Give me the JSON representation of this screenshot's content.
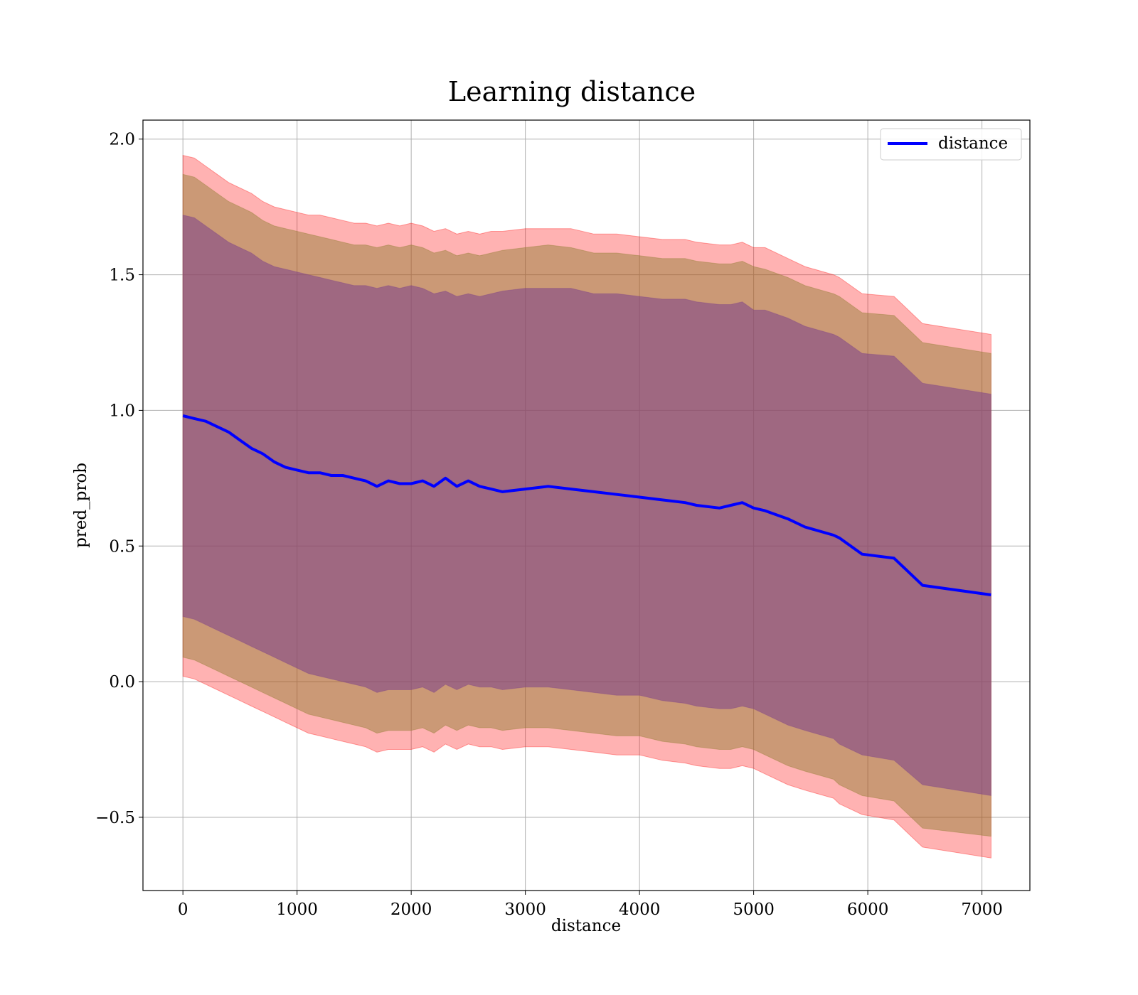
{
  "chart_data": {
    "type": "line",
    "title": "Learning distance",
    "xlabel": "distance",
    "ylabel": "pred_prob",
    "xlim": [
      -350,
      7420
    ],
    "ylim": [
      -0.77,
      2.07
    ],
    "xticks": [
      0,
      1000,
      2000,
      3000,
      4000,
      5000,
      6000,
      7000
    ],
    "yticks": [
      -0.5,
      0.0,
      0.5,
      1.0,
      1.5,
      2.0
    ],
    "xtick_labels": [
      "0",
      "1000",
      "2000",
      "3000",
      "4000",
      "5000",
      "6000",
      "7000"
    ],
    "ytick_labels": [
      "−0.5",
      "0.0",
      "0.5",
      "1.0",
      "1.5",
      "2.0"
    ],
    "grid": true,
    "legend": {
      "placement": "top-right",
      "entries": [
        "distance"
      ]
    },
    "colors": {
      "line": "#0000ff",
      "band_outer": "#ff0000",
      "band_mid": "#8c7a2c",
      "band_inner": "#7b3f8a",
      "grid": "#b0b0b0"
    },
    "series": [
      {
        "name": "distance",
        "x": [
          0,
          100,
          200,
          300,
          400,
          500,
          600,
          700,
          800,
          900,
          1000,
          1100,
          1200,
          1300,
          1400,
          1500,
          1600,
          1700,
          1800,
          1900,
          2000,
          2100,
          2200,
          2300,
          2400,
          2500,
          2600,
          2700,
          2800,
          3000,
          3200,
          3400,
          3600,
          3800,
          4000,
          4200,
          4400,
          4500,
          4700,
          4800,
          4900,
          5000,
          5100,
          5300,
          5450,
          5700,
          5750,
          5950,
          6230,
          6480,
          7080
        ],
        "y": [
          0.98,
          0.97,
          0.96,
          0.94,
          0.92,
          0.89,
          0.86,
          0.84,
          0.81,
          0.79,
          0.78,
          0.77,
          0.77,
          0.76,
          0.76,
          0.75,
          0.74,
          0.72,
          0.74,
          0.73,
          0.73,
          0.74,
          0.72,
          0.75,
          0.72,
          0.74,
          0.72,
          0.71,
          0.7,
          0.71,
          0.72,
          0.71,
          0.7,
          0.69,
          0.68,
          0.67,
          0.66,
          0.65,
          0.64,
          0.65,
          0.66,
          0.64,
          0.63,
          0.6,
          0.57,
          0.54,
          0.53,
          0.47,
          0.455,
          0.355,
          0.32
        ]
      }
    ],
    "bands": [
      {
        "upper": [
          1.94,
          1.93,
          1.9,
          1.87,
          1.84,
          1.82,
          1.8,
          1.77,
          1.75,
          1.74,
          1.73,
          1.72,
          1.72,
          1.71,
          1.7,
          1.69,
          1.69,
          1.68,
          1.69,
          1.68,
          1.69,
          1.68,
          1.66,
          1.67,
          1.65,
          1.66,
          1.65,
          1.66,
          1.66,
          1.67,
          1.67,
          1.67,
          1.65,
          1.65,
          1.64,
          1.63,
          1.63,
          1.62,
          1.61,
          1.61,
          1.62,
          1.6,
          1.6,
          1.56,
          1.53,
          1.5,
          1.49,
          1.43,
          1.42,
          1.32,
          1.28
        ],
        "lower": [
          0.02,
          0.01,
          -0.01,
          -0.03,
          -0.05,
          -0.07,
          -0.09,
          -0.11,
          -0.13,
          -0.15,
          -0.17,
          -0.19,
          -0.2,
          -0.21,
          -0.22,
          -0.23,
          -0.24,
          -0.26,
          -0.25,
          -0.25,
          -0.25,
          -0.24,
          -0.26,
          -0.23,
          -0.25,
          -0.23,
          -0.24,
          -0.24,
          -0.25,
          -0.24,
          -0.24,
          -0.25,
          -0.26,
          -0.27,
          -0.27,
          -0.29,
          -0.3,
          -0.31,
          -0.32,
          -0.32,
          -0.31,
          -0.32,
          -0.34,
          -0.38,
          -0.4,
          -0.43,
          -0.45,
          -0.49,
          -0.51,
          -0.61,
          -0.65
        ]
      },
      {
        "upper": [
          1.87,
          1.86,
          1.83,
          1.8,
          1.77,
          1.75,
          1.73,
          1.7,
          1.68,
          1.67,
          1.66,
          1.65,
          1.64,
          1.63,
          1.62,
          1.61,
          1.61,
          1.6,
          1.61,
          1.6,
          1.61,
          1.6,
          1.58,
          1.59,
          1.57,
          1.58,
          1.57,
          1.58,
          1.59,
          1.6,
          1.61,
          1.6,
          1.58,
          1.58,
          1.57,
          1.56,
          1.56,
          1.55,
          1.54,
          1.54,
          1.55,
          1.53,
          1.52,
          1.49,
          1.46,
          1.43,
          1.42,
          1.36,
          1.35,
          1.25,
          1.21
        ],
        "lower": [
          0.09,
          0.08,
          0.06,
          0.04,
          0.02,
          -0.0,
          -0.02,
          -0.04,
          -0.06,
          -0.08,
          -0.1,
          -0.12,
          -0.13,
          -0.14,
          -0.15,
          -0.16,
          -0.17,
          -0.19,
          -0.18,
          -0.18,
          -0.18,
          -0.17,
          -0.19,
          -0.16,
          -0.18,
          -0.16,
          -0.17,
          -0.17,
          -0.18,
          -0.17,
          -0.17,
          -0.18,
          -0.19,
          -0.2,
          -0.2,
          -0.22,
          -0.23,
          -0.24,
          -0.25,
          -0.25,
          -0.24,
          -0.25,
          -0.27,
          -0.31,
          -0.33,
          -0.36,
          -0.38,
          -0.42,
          -0.44,
          -0.54,
          -0.57
        ]
      },
      {
        "upper": [
          1.72,
          1.71,
          1.68,
          1.65,
          1.62,
          1.6,
          1.58,
          1.55,
          1.53,
          1.52,
          1.51,
          1.5,
          1.49,
          1.48,
          1.47,
          1.46,
          1.46,
          1.45,
          1.46,
          1.45,
          1.46,
          1.45,
          1.43,
          1.44,
          1.42,
          1.43,
          1.42,
          1.43,
          1.44,
          1.45,
          1.45,
          1.45,
          1.43,
          1.43,
          1.42,
          1.41,
          1.41,
          1.4,
          1.39,
          1.39,
          1.4,
          1.37,
          1.37,
          1.34,
          1.31,
          1.28,
          1.27,
          1.21,
          1.2,
          1.1,
          1.06
        ],
        "lower": [
          0.24,
          0.23,
          0.21,
          0.19,
          0.17,
          0.15,
          0.13,
          0.11,
          0.09,
          0.07,
          0.05,
          0.03,
          0.02,
          0.01,
          0.0,
          -0.01,
          -0.02,
          -0.04,
          -0.03,
          -0.03,
          -0.03,
          -0.02,
          -0.04,
          -0.01,
          -0.03,
          -0.01,
          -0.02,
          -0.02,
          -0.03,
          -0.02,
          -0.02,
          -0.03,
          -0.04,
          -0.05,
          -0.05,
          -0.07,
          -0.08,
          -0.09,
          -0.1,
          -0.1,
          -0.09,
          -0.1,
          -0.12,
          -0.16,
          -0.18,
          -0.21,
          -0.23,
          -0.27,
          -0.29,
          -0.38,
          -0.42
        ]
      }
    ]
  }
}
